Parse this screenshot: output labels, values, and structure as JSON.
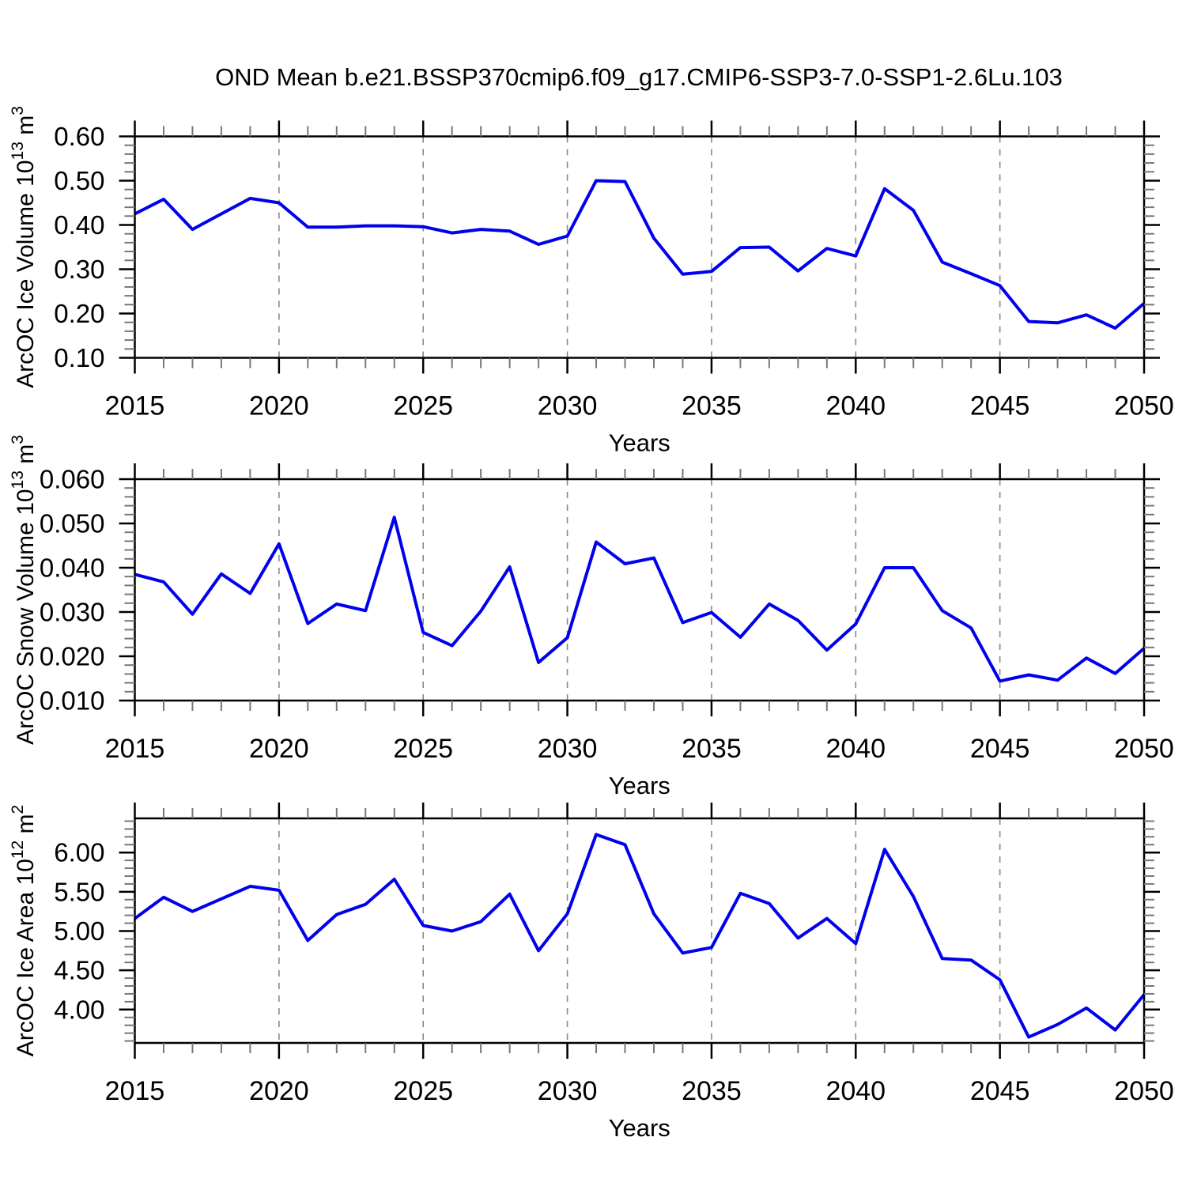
{
  "title": "OND Mean b.e21.BSSP370cmip6.f09_g17.CMIP6-SSP3-7.0-SSP1-2.6Lu.103",
  "xlabel": "Years",
  "line_color": "#0000EE",
  "gridline_color": "#888888",
  "minor_tick_color": "#777777",
  "major_tick_color": "#000000",
  "years": [
    2015,
    2016,
    2017,
    2018,
    2019,
    2020,
    2021,
    2022,
    2023,
    2024,
    2025,
    2026,
    2027,
    2028,
    2029,
    2030,
    2031,
    2032,
    2033,
    2034,
    2035,
    2036,
    2037,
    2038,
    2039,
    2040,
    2041,
    2042,
    2043,
    2044,
    2045,
    2046,
    2047,
    2048,
    2049,
    2050
  ],
  "x_major_ticks": [
    2015,
    2020,
    2025,
    2030,
    2035,
    2040,
    2045,
    2050
  ],
  "x_tick_labels": [
    "2015",
    "2020",
    "2025",
    "2030",
    "2035",
    "2040",
    "2045",
    "2050"
  ],
  "x_gridlines": [
    2020,
    2025,
    2030,
    2035,
    2040,
    2045
  ],
  "chart_data": [
    {
      "type": "line",
      "name": "arcoc-ice-volume",
      "ylabel_parts": [
        [
          "ArcOC Ice Volume 10",
          "normal"
        ],
        [
          "13",
          "sup"
        ],
        [
          " m",
          "normal"
        ],
        [
          "3",
          "sup"
        ]
      ],
      "ylim": [
        0.1,
        0.6
      ],
      "yticks": [
        0.1,
        0.2,
        0.3,
        0.4,
        0.5,
        0.6
      ],
      "ytick_labels": [
        "0.10",
        "0.20",
        "0.30",
        "0.40",
        "0.50",
        "0.60"
      ],
      "minor_step": 0.02,
      "xlabel": "Years",
      "values": [
        0.425,
        0.458,
        0.39,
        0.425,
        0.46,
        0.45,
        0.395,
        0.395,
        0.398,
        0.398,
        0.396,
        0.382,
        0.39,
        0.386,
        0.356,
        0.375,
        0.5,
        0.498,
        0.37,
        0.289,
        0.295,
        0.349,
        0.35,
        0.296,
        0.347,
        0.33,
        0.482,
        0.433,
        0.316,
        0.29,
        0.263,
        0.182,
        0.179,
        0.197,
        0.167,
        0.223
      ]
    },
    {
      "type": "line",
      "name": "arcoc-snow-volume",
      "ylabel_parts": [
        [
          "ArcOC Snow Volume 10",
          "normal"
        ],
        [
          "13",
          "sup"
        ],
        [
          " m",
          "normal"
        ],
        [
          "3",
          "sup"
        ]
      ],
      "ylim": [
        0.01,
        0.06
      ],
      "yticks": [
        0.01,
        0.02,
        0.03,
        0.04,
        0.05,
        0.06
      ],
      "ytick_labels": [
        "0.010",
        "0.020",
        "0.030",
        "0.040",
        "0.050",
        "0.060"
      ],
      "minor_step": 0.002,
      "xlabel": "Years",
      "values": [
        0.0385,
        0.0368,
        0.0295,
        0.0386,
        0.0342,
        0.0454,
        0.0274,
        0.0318,
        0.0303,
        0.0514,
        0.0254,
        0.0224,
        0.0302,
        0.0402,
        0.0186,
        0.0242,
        0.0458,
        0.0409,
        0.0422,
        0.0276,
        0.0299,
        0.0243,
        0.0318,
        0.0281,
        0.0214,
        0.0273,
        0.04,
        0.04,
        0.0303,
        0.0264,
        0.0144,
        0.0158,
        0.0146,
        0.0196,
        0.0161,
        0.0218
      ]
    },
    {
      "type": "line",
      "name": "arcoc-ice-area",
      "ylabel_parts": [
        [
          "ArcOC Ice Area 10",
          "normal"
        ],
        [
          "12",
          "sup"
        ],
        [
          " m",
          "normal"
        ],
        [
          "2",
          "sup"
        ]
      ],
      "ylim": [
        3.575,
        6.435
      ],
      "yticks": [
        4.0,
        4.5,
        5.0,
        5.5,
        6.0
      ],
      "ytick_labels": [
        "4.00",
        "4.50",
        "5.00",
        "5.50",
        "6.00"
      ],
      "minor_step": 0.1,
      "xlabel": "Years",
      "values": [
        5.16,
        5.43,
        5.25,
        5.41,
        5.57,
        5.52,
        4.88,
        5.21,
        5.34,
        5.66,
        5.07,
        5.0,
        5.12,
        5.47,
        4.75,
        5.22,
        6.23,
        6.1,
        5.22,
        4.72,
        4.79,
        5.48,
        5.35,
        4.91,
        5.16,
        4.84,
        6.04,
        5.44,
        4.65,
        4.63,
        4.38,
        3.65,
        3.81,
        4.02,
        3.74,
        4.19
      ]
    }
  ]
}
